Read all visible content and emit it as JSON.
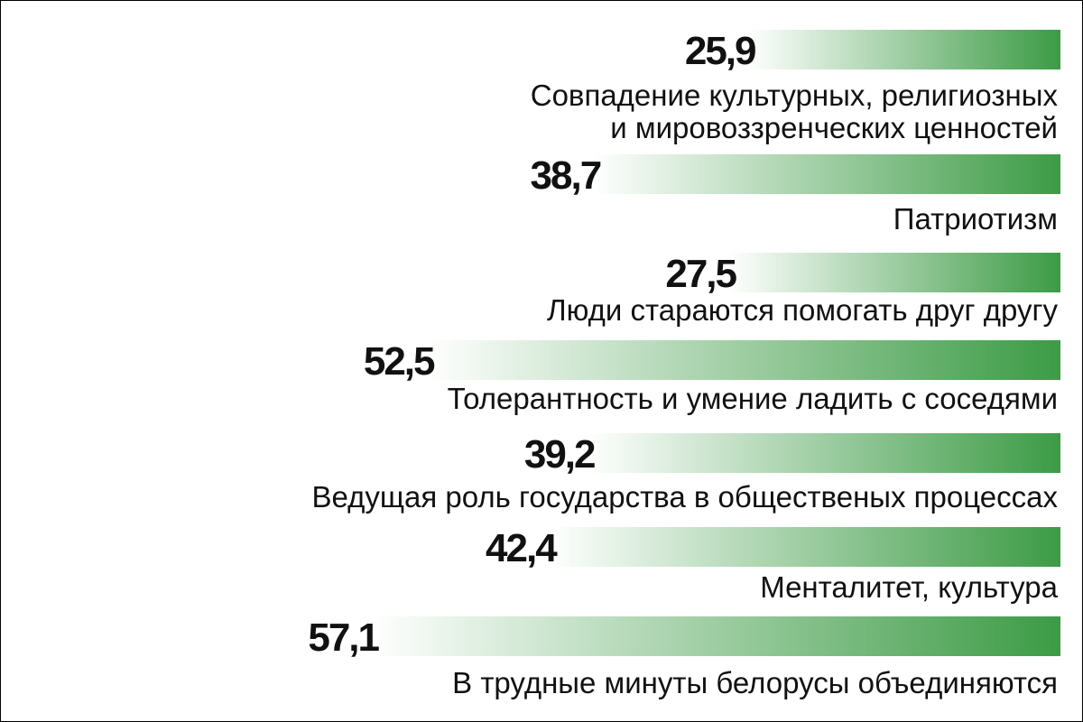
{
  "chart_data": {
    "type": "bar",
    "orientation": "horizontal",
    "title": "",
    "xlabel": "",
    "ylabel": "",
    "xlim": [
      0,
      60
    ],
    "grid": false,
    "legend": "none",
    "categories": [
      [
        "Совпадение культурных, религиозных",
        "и мировоззренческих ценностей"
      ],
      [
        "Патриотизм"
      ],
      [
        "Люди стараются помогать друг другу"
      ],
      [
        "Толерантность и умение ладить с соседями"
      ],
      [
        "Ведущая роль государства в общественых процессах"
      ],
      [
        "Менталитет, культура"
      ],
      [
        "В трудные минуты белорусы объединяются"
      ]
    ],
    "values": [
      25.9,
      38.7,
      27.5,
      52.5,
      39.2,
      42.4,
      57.1
    ],
    "value_labels": [
      "25,9",
      "38,7",
      "27,5",
      "52,5",
      "39,2",
      "42,4",
      "57,1"
    ],
    "colors": {
      "bar_end": "#3c9b45",
      "bar_start": "#ffffff",
      "text": "#111111"
    }
  }
}
